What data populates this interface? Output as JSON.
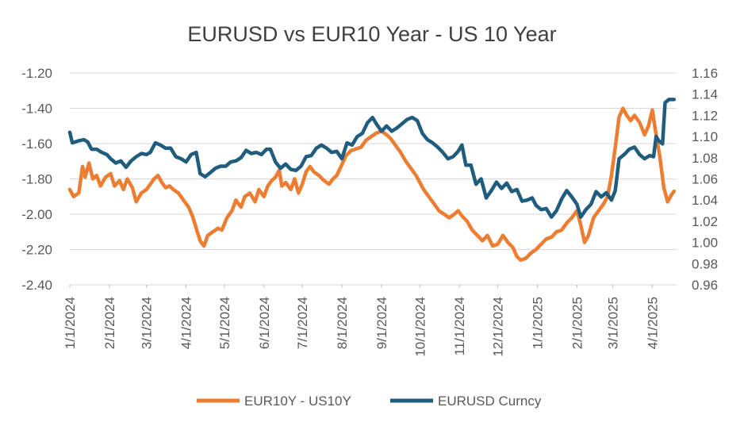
{
  "chart_data": {
    "type": "line",
    "title": "EURUSD vs EUR10  Year - US 10 Year",
    "xlabel": "",
    "x_tick_labels": [
      "1/1/2024",
      "2/1/2024",
      "3/1/2024",
      "4/1/2024",
      "5/1/2024",
      "6/1/2024",
      "7/1/2024",
      "8/1/2024",
      "9/1/2024",
      "10/1/2024",
      "11/1/2024",
      "12/1/2024",
      "1/1/2025",
      "2/1/2025",
      "3/1/2025",
      "4/1/2025"
    ],
    "x_range": [
      "2024-01-01",
      "2025-04-20"
    ],
    "y_left": {
      "ylim": [
        -2.4,
        -1.2
      ],
      "tick_labels": [
        "-1.20",
        "-1.40",
        "-1.60",
        "-1.80",
        "-2.00",
        "-2.20",
        "-2.40"
      ],
      "tick_values": [
        -1.2,
        -1.4,
        -1.6,
        -1.8,
        -2.0,
        -2.2,
        -2.4
      ]
    },
    "y_right": {
      "ylim": [
        0.96,
        1.16
      ],
      "tick_labels": [
        "1.16",
        "1.14",
        "1.12",
        "1.10",
        "1.08",
        "1.06",
        "1.04",
        "1.02",
        "1.00",
        "0.98",
        "0.96"
      ],
      "tick_values": [
        1.16,
        1.14,
        1.12,
        1.1,
        1.08,
        1.06,
        1.04,
        1.02,
        1.0,
        0.98,
        0.96
      ]
    },
    "grid": true,
    "legend_position": "bottom",
    "series": [
      {
        "name": "EUR10Y - US10Y",
        "axis": "left",
        "color": "#ED7D31",
        "points": [
          [
            "2024-01-01",
            -1.86
          ],
          [
            "2024-01-04",
            -1.9
          ],
          [
            "2024-01-08",
            -1.88
          ],
          [
            "2024-01-11",
            -1.73
          ],
          [
            "2024-01-13",
            -1.79
          ],
          [
            "2024-01-16",
            -1.71
          ],
          [
            "2024-01-19",
            -1.8
          ],
          [
            "2024-01-22",
            -1.78
          ],
          [
            "2024-01-25",
            -1.84
          ],
          [
            "2024-01-29",
            -1.79
          ],
          [
            "2024-02-02",
            -1.77
          ],
          [
            "2024-02-05",
            -1.84
          ],
          [
            "2024-02-09",
            -1.81
          ],
          [
            "2024-02-12",
            -1.86
          ],
          [
            "2024-02-15",
            -1.8
          ],
          [
            "2024-02-19",
            -1.85
          ],
          [
            "2024-02-22",
            -1.93
          ],
          [
            "2024-02-26",
            -1.88
          ],
          [
            "2024-03-01",
            -1.86
          ],
          [
            "2024-03-04",
            -1.83
          ],
          [
            "2024-03-07",
            -1.8
          ],
          [
            "2024-03-10",
            -1.78
          ],
          [
            "2024-03-13",
            -1.82
          ],
          [
            "2024-03-16",
            -1.85
          ],
          [
            "2024-03-19",
            -1.84
          ],
          [
            "2024-03-22",
            -1.86
          ],
          [
            "2024-03-26",
            -1.88
          ],
          [
            "2024-03-30",
            -1.92
          ],
          [
            "2024-04-03",
            -1.96
          ],
          [
            "2024-04-06",
            -2.01
          ],
          [
            "2024-04-09",
            -2.08
          ],
          [
            "2024-04-12",
            -2.15
          ],
          [
            "2024-04-15",
            -2.18
          ],
          [
            "2024-04-18",
            -2.12
          ],
          [
            "2024-04-22",
            -2.1
          ],
          [
            "2024-04-26",
            -2.08
          ],
          [
            "2024-04-29",
            -2.09
          ],
          [
            "2024-05-03",
            -2.02
          ],
          [
            "2024-05-07",
            -1.98
          ],
          [
            "2024-05-10",
            -1.92
          ],
          [
            "2024-05-14",
            -1.96
          ],
          [
            "2024-05-17",
            -1.9
          ],
          [
            "2024-05-21",
            -1.88
          ],
          [
            "2024-05-25",
            -1.93
          ],
          [
            "2024-05-28",
            -1.86
          ],
          [
            "2024-06-01",
            -1.9
          ],
          [
            "2024-06-04",
            -1.84
          ],
          [
            "2024-06-07",
            -1.81
          ],
          [
            "2024-06-10",
            -1.79
          ],
          [
            "2024-06-13",
            -1.75
          ],
          [
            "2024-06-15",
            -1.84
          ],
          [
            "2024-06-18",
            -1.82
          ],
          [
            "2024-06-22",
            -1.86
          ],
          [
            "2024-06-25",
            -1.8
          ],
          [
            "2024-06-28",
            -1.88
          ],
          [
            "2024-07-01",
            -1.83
          ],
          [
            "2024-07-04",
            -1.76
          ],
          [
            "2024-07-07",
            -1.73
          ],
          [
            "2024-07-10",
            -1.76
          ],
          [
            "2024-07-14",
            -1.78
          ],
          [
            "2024-07-18",
            -1.81
          ],
          [
            "2024-07-22",
            -1.83
          ],
          [
            "2024-07-25",
            -1.8
          ],
          [
            "2024-07-28",
            -1.78
          ],
          [
            "2024-08-01",
            -1.72
          ],
          [
            "2024-08-04",
            -1.67
          ],
          [
            "2024-08-08",
            -1.64
          ],
          [
            "2024-08-12",
            -1.63
          ],
          [
            "2024-08-16",
            -1.62
          ],
          [
            "2024-08-20",
            -1.58
          ],
          [
            "2024-08-24",
            -1.56
          ],
          [
            "2024-08-28",
            -1.54
          ],
          [
            "2024-09-01",
            -1.53
          ],
          [
            "2024-09-05",
            -1.55
          ],
          [
            "2024-09-08",
            -1.57
          ],
          [
            "2024-09-12",
            -1.61
          ],
          [
            "2024-09-16",
            -1.65
          ],
          [
            "2024-09-20",
            -1.7
          ],
          [
            "2024-09-24",
            -1.74
          ],
          [
            "2024-09-28",
            -1.78
          ],
          [
            "2024-10-01",
            -1.82
          ],
          [
            "2024-10-04",
            -1.86
          ],
          [
            "2024-10-08",
            -1.9
          ],
          [
            "2024-10-12",
            -1.94
          ],
          [
            "2024-10-16",
            -1.98
          ],
          [
            "2024-10-20",
            -2.0
          ],
          [
            "2024-10-24",
            -2.02
          ],
          [
            "2024-10-28",
            -2.0
          ],
          [
            "2024-10-31",
            -1.98
          ],
          [
            "2024-11-03",
            -2.01
          ],
          [
            "2024-11-07",
            -2.04
          ],
          [
            "2024-11-11",
            -2.09
          ],
          [
            "2024-11-15",
            -2.12
          ],
          [
            "2024-11-19",
            -2.15
          ],
          [
            "2024-11-23",
            -2.12
          ],
          [
            "2024-11-27",
            -2.18
          ],
          [
            "2024-12-01",
            -2.17
          ],
          [
            "2024-12-05",
            -2.12
          ],
          [
            "2024-12-09",
            -2.16
          ],
          [
            "2024-12-13",
            -2.19
          ],
          [
            "2024-12-16",
            -2.24
          ],
          [
            "2024-12-19",
            -2.26
          ],
          [
            "2024-12-23",
            -2.25
          ],
          [
            "2024-12-27",
            -2.22
          ],
          [
            "2024-12-31",
            -2.2
          ],
          [
            "2025-01-04",
            -2.17
          ],
          [
            "2025-01-08",
            -2.14
          ],
          [
            "2025-01-12",
            -2.13
          ],
          [
            "2025-01-16",
            -2.1
          ],
          [
            "2025-01-20",
            -2.09
          ],
          [
            "2025-01-24",
            -2.05
          ],
          [
            "2025-01-28",
            -2.02
          ],
          [
            "2025-02-01",
            -1.98
          ],
          [
            "2025-02-04",
            -2.06
          ],
          [
            "2025-02-07",
            -2.16
          ],
          [
            "2025-02-10",
            -2.12
          ],
          [
            "2025-02-14",
            -2.02
          ],
          [
            "2025-02-18",
            -1.98
          ],
          [
            "2025-02-22",
            -1.94
          ],
          [
            "2025-02-25",
            -1.9
          ],
          [
            "2025-02-28",
            -1.78
          ],
          [
            "2025-03-03",
            -1.62
          ],
          [
            "2025-03-06",
            -1.45
          ],
          [
            "2025-03-09",
            -1.4
          ],
          [
            "2025-03-12",
            -1.44
          ],
          [
            "2025-03-15",
            -1.47
          ],
          [
            "2025-03-18",
            -1.44
          ],
          [
            "2025-03-22",
            -1.48
          ],
          [
            "2025-03-26",
            -1.55
          ],
          [
            "2025-03-29",
            -1.5
          ],
          [
            "2025-04-01",
            -1.41
          ],
          [
            "2025-04-04",
            -1.55
          ],
          [
            "2025-04-07",
            -1.68
          ],
          [
            "2025-04-10",
            -1.85
          ],
          [
            "2025-04-13",
            -1.93
          ],
          [
            "2025-04-16",
            -1.89
          ],
          [
            "2025-04-18",
            -1.87
          ]
        ]
      },
      {
        "name": "EURUSD Curncy",
        "axis": "right",
        "color": "#1F5C7D",
        "points": [
          [
            "2024-01-01",
            1.104
          ],
          [
            "2024-01-03",
            1.094
          ],
          [
            "2024-01-08",
            1.096
          ],
          [
            "2024-01-12",
            1.097
          ],
          [
            "2024-01-15",
            1.095
          ],
          [
            "2024-01-18",
            1.088
          ],
          [
            "2024-01-22",
            1.088
          ],
          [
            "2024-01-26",
            1.085
          ],
          [
            "2024-01-30",
            1.083
          ],
          [
            "2024-02-02",
            1.079
          ],
          [
            "2024-02-06",
            1.075
          ],
          [
            "2024-02-10",
            1.077
          ],
          [
            "2024-02-14",
            1.071
          ],
          [
            "2024-02-18",
            1.077
          ],
          [
            "2024-02-22",
            1.081
          ],
          [
            "2024-02-26",
            1.084
          ],
          [
            "2024-03-01",
            1.083
          ],
          [
            "2024-03-04",
            1.085
          ],
          [
            "2024-03-08",
            1.094
          ],
          [
            "2024-03-12",
            1.092
          ],
          [
            "2024-03-16",
            1.089
          ],
          [
            "2024-03-20",
            1.089
          ],
          [
            "2024-03-24",
            1.081
          ],
          [
            "2024-03-28",
            1.079
          ],
          [
            "2024-04-01",
            1.076
          ],
          [
            "2024-04-05",
            1.083
          ],
          [
            "2024-04-09",
            1.085
          ],
          [
            "2024-04-12",
            1.065
          ],
          [
            "2024-04-16",
            1.062
          ],
          [
            "2024-04-20",
            1.066
          ],
          [
            "2024-04-24",
            1.07
          ],
          [
            "2024-04-28",
            1.072
          ],
          [
            "2024-05-02",
            1.072
          ],
          [
            "2024-05-06",
            1.076
          ],
          [
            "2024-05-10",
            1.077
          ],
          [
            "2024-05-14",
            1.08
          ],
          [
            "2024-05-18",
            1.087
          ],
          [
            "2024-05-22",
            1.084
          ],
          [
            "2024-05-26",
            1.085
          ],
          [
            "2024-05-30",
            1.083
          ],
          [
            "2024-06-03",
            1.088
          ],
          [
            "2024-06-06",
            1.088
          ],
          [
            "2024-06-10",
            1.076
          ],
          [
            "2024-06-14",
            1.07
          ],
          [
            "2024-06-18",
            1.074
          ],
          [
            "2024-06-22",
            1.069
          ],
          [
            "2024-06-26",
            1.068
          ],
          [
            "2024-06-30",
            1.072
          ],
          [
            "2024-07-04",
            1.081
          ],
          [
            "2024-07-08",
            1.082
          ],
          [
            "2024-07-12",
            1.089
          ],
          [
            "2024-07-16",
            1.092
          ],
          [
            "2024-07-20",
            1.089
          ],
          [
            "2024-07-24",
            1.085
          ],
          [
            "2024-07-28",
            1.086
          ],
          [
            "2024-08-01",
            1.079
          ],
          [
            "2024-08-05",
            1.094
          ],
          [
            "2024-08-09",
            1.092
          ],
          [
            "2024-08-13",
            1.1
          ],
          [
            "2024-08-17",
            1.103
          ],
          [
            "2024-08-21",
            1.113
          ],
          [
            "2024-08-25",
            1.118
          ],
          [
            "2024-08-28",
            1.112
          ],
          [
            "2024-09-01",
            1.105
          ],
          [
            "2024-09-05",
            1.11
          ],
          [
            "2024-09-09",
            1.105
          ],
          [
            "2024-09-13",
            1.108
          ],
          [
            "2024-09-17",
            1.112
          ],
          [
            "2024-09-21",
            1.116
          ],
          [
            "2024-09-25",
            1.118
          ],
          [
            "2024-09-29",
            1.115
          ],
          [
            "2024-10-03",
            1.103
          ],
          [
            "2024-10-07",
            1.097
          ],
          [
            "2024-10-11",
            1.094
          ],
          [
            "2024-10-15",
            1.09
          ],
          [
            "2024-10-19",
            1.085
          ],
          [
            "2024-10-23",
            1.079
          ],
          [
            "2024-10-27",
            1.081
          ],
          [
            "2024-10-31",
            1.086
          ],
          [
            "2024-11-03",
            1.092
          ],
          [
            "2024-11-06",
            1.073
          ],
          [
            "2024-11-10",
            1.073
          ],
          [
            "2024-11-14",
            1.055
          ],
          [
            "2024-11-18",
            1.06
          ],
          [
            "2024-11-22",
            1.042
          ],
          [
            "2024-11-26",
            1.049
          ],
          [
            "2024-11-30",
            1.057
          ],
          [
            "2024-12-04",
            1.051
          ],
          [
            "2024-12-08",
            1.056
          ],
          [
            "2024-12-12",
            1.048
          ],
          [
            "2024-12-16",
            1.05
          ],
          [
            "2024-12-20",
            1.039
          ],
          [
            "2024-12-24",
            1.04
          ],
          [
            "2024-12-28",
            1.042
          ],
          [
            "2024-12-31",
            1.035
          ],
          [
            "2025-01-04",
            1.031
          ],
          [
            "2025-01-08",
            1.032
          ],
          [
            "2025-01-12",
            1.024
          ],
          [
            "2025-01-16",
            1.03
          ],
          [
            "2025-01-20",
            1.041
          ],
          [
            "2025-01-24",
            1.049
          ],
          [
            "2025-01-28",
            1.043
          ],
          [
            "2025-02-01",
            1.036
          ],
          [
            "2025-02-04",
            1.024
          ],
          [
            "2025-02-08",
            1.031
          ],
          [
            "2025-02-12",
            1.036
          ],
          [
            "2025-02-16",
            1.048
          ],
          [
            "2025-02-20",
            1.043
          ],
          [
            "2025-02-24",
            1.047
          ],
          [
            "2025-02-28",
            1.04
          ],
          [
            "2025-03-03",
            1.049
          ],
          [
            "2025-03-06",
            1.079
          ],
          [
            "2025-03-10",
            1.083
          ],
          [
            "2025-03-14",
            1.088
          ],
          [
            "2025-03-18",
            1.09
          ],
          [
            "2025-03-22",
            1.083
          ],
          [
            "2025-03-26",
            1.079
          ],
          [
            "2025-03-30",
            1.082
          ],
          [
            "2025-04-02",
            1.081
          ],
          [
            "2025-04-04",
            1.1
          ],
          [
            "2025-04-06",
            1.096
          ],
          [
            "2025-04-09",
            1.093
          ],
          [
            "2025-04-11",
            1.132
          ],
          [
            "2025-04-14",
            1.135
          ],
          [
            "2025-04-18",
            1.135
          ]
        ]
      }
    ]
  }
}
